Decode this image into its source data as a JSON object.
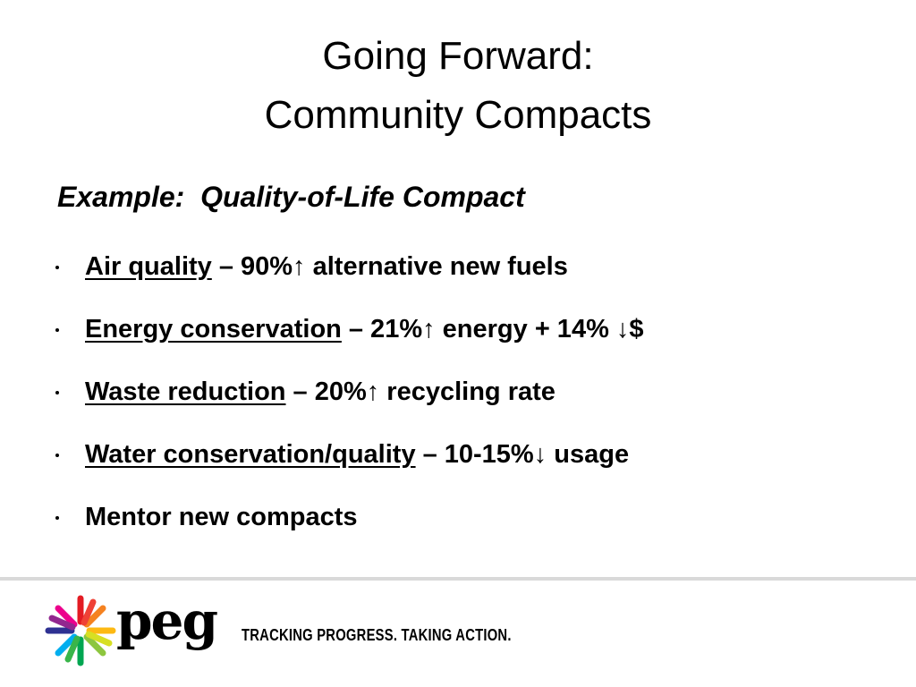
{
  "title": [
    "Going Forward:",
    "Community Compacts"
  ],
  "subtitle": "Example:  Quality-of-Life Compact",
  "bullets": [
    {
      "label": "Air quality",
      "text": "– 90%↑ alternative new fuels"
    },
    {
      "label": "Energy conservation",
      "text": "– 21%↑ energy + 14% ↓$"
    },
    {
      "label": "Waste reduction",
      "text": "– 20%↑ recycling rate"
    },
    {
      "label": "Water conservation/quality",
      "text": "– 10-15%↓ usage"
    },
    {
      "text": "Mentor new compacts"
    }
  ],
  "footer": {
    "logo": "peg",
    "tagline": "TRACKING PROGRESS. TAKING ACTION."
  }
}
